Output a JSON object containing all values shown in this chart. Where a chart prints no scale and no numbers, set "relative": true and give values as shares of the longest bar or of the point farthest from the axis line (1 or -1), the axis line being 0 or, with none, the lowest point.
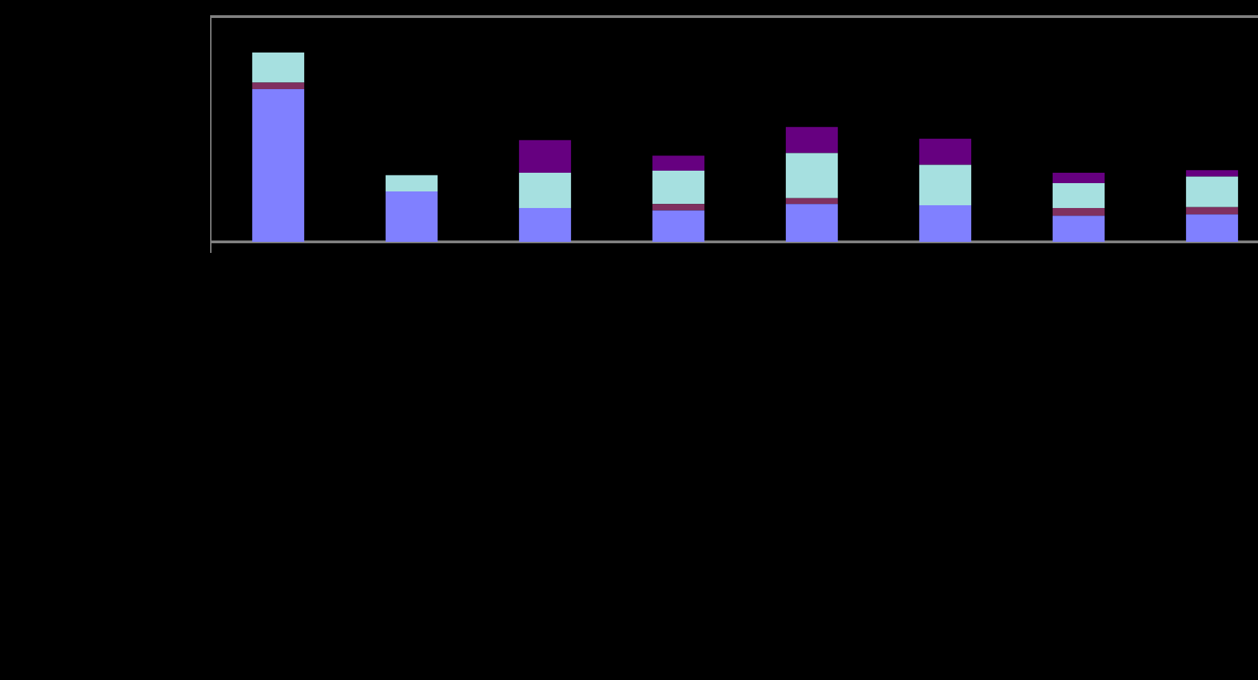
{
  "chart_data": {
    "type": "bar",
    "stacked": true,
    "relative": true,
    "legend": false,
    "tick_labels": false,
    "categories": [
      null,
      null,
      null,
      null,
      null,
      null,
      null,
      null
    ],
    "series": [
      {
        "color": "#8080ff",
        "values": [
          0.807,
          0.266,
          0.179,
          0.166,
          0.2,
          0.193,
          0.138,
          0.145
        ]
      },
      {
        "color": "#803060",
        "values": [
          0.034,
          null,
          null,
          0.034,
          0.031,
          null,
          0.041,
          0.038
        ]
      },
      {
        "color": "#a6e0e0",
        "values": [
          0.159,
          0.086,
          0.186,
          0.176,
          0.238,
          0.214,
          0.131,
          0.162
        ]
      },
      {
        "color": "#660080",
        "values": [
          null,
          null,
          0.172,
          0.079,
          0.138,
          0.138,
          0.055,
          0.034
        ]
      }
    ]
  }
}
